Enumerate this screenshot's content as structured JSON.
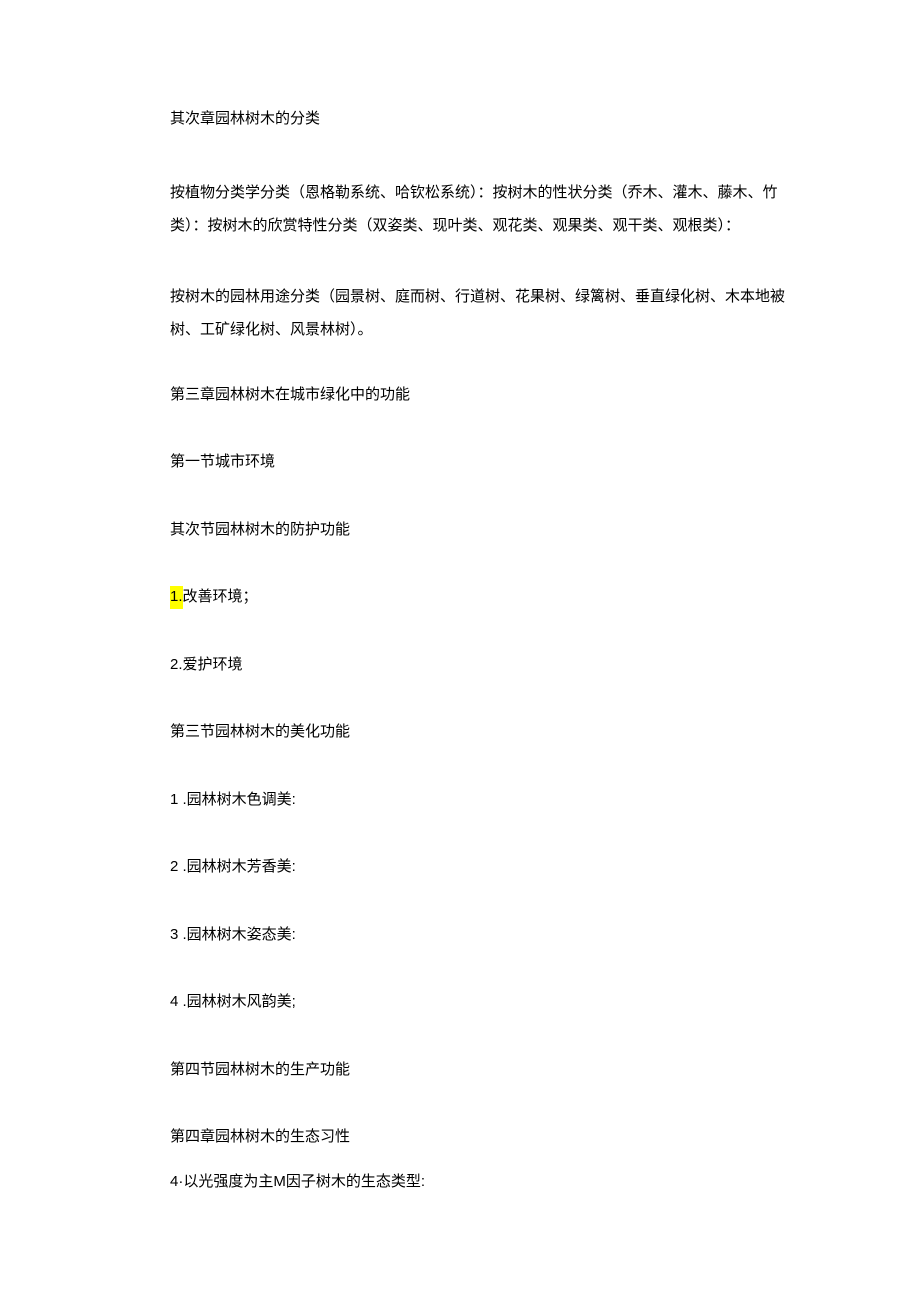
{
  "doc": {
    "para1": "其次章园林树木的分类",
    "para2": "按植物分类学分类（恩格勒系统、哈钦松系统）：按树木的性状分类（乔木、灌木、藤木、竹类）：按树木的欣赏特性分类（双姿类、现叶类、观花类、观果类、观干类、观根类）：",
    "para3": "按树木的园林用途分类（园景树、庭而树、行道树、花果树、绿篱树、垂直绿化树、木本地被树、工矿绿化树、风景林树）。",
    "para4": "第三章园林树木在城市绿化中的功能",
    "para5": "第一节城市环境",
    "para6": "其次节园林树木的防护功能",
    "para7_hl": "1.",
    "para7_rest": "改善环境；",
    "para8": "2.爱护环境",
    "para9": "第三节园林树木的美化功能",
    "para10": "1 .园林树木色调美:",
    "para11": "2   .园林树木芳香美:",
    "para12": "3   .园林树木姿态美:",
    "para13": "4   .园林树木风韵美;",
    "para14": "第四节园林树木的生产功能",
    "para15": "第四章园林树木的生态习性",
    "para16": "4·以光强度为主M因子树木的生态类型:"
  }
}
